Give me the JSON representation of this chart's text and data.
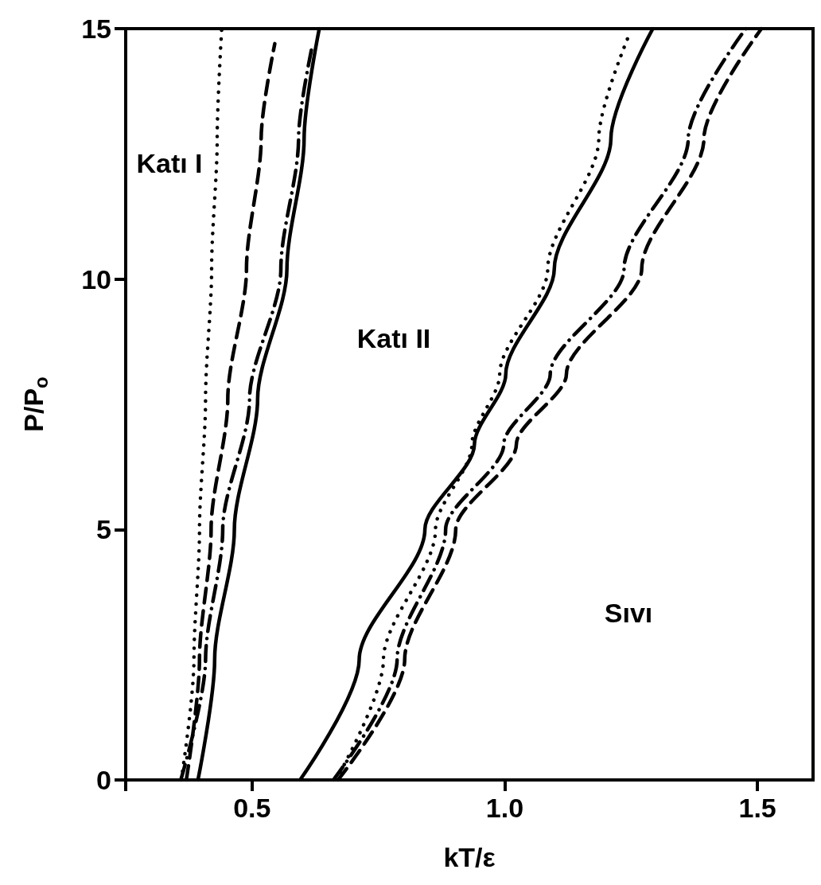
{
  "chart_data": {
    "type": "line",
    "xlabel": "kT/ε",
    "ylabel": "P/P$_{o}$",
    "xlim": [
      0.25,
      1.61
    ],
    "ylim": [
      0,
      15
    ],
    "xticks": [
      {
        "value": 0.25,
        "label": null
      },
      0.5,
      {
        "value": 1,
        "label": "1.0"
      },
      1.5
    ],
    "yticks": [
      0,
      5,
      10,
      15
    ],
    "grid": false,
    "marker": "none",
    "annotations": [
      "Katı I",
      "Katı II",
      "Sıvı"
    ],
    "series": [
      {
        "color": "#000000",
        "line_style": "solid",
        "x": [
          0.393,
          0.426,
          0.465,
          0.511,
          0.569,
          0.603,
          0.633
        ],
        "values": [
          0,
          2.4,
          5,
          7.6,
          10.2,
          12.8,
          15
        ]
      },
      {
        "color": "#000000",
        "line_style": "dotted",
        "x": [
          0.36,
          0.385,
          0.396,
          0.408,
          0.42,
          0.431,
          0.44
        ],
        "values": [
          0,
          2.4,
          5,
          7.6,
          10.2,
          12.8,
          15
        ]
      },
      {
        "color": "#000000",
        "line_style": "dashed",
        "x": [
          0.37,
          0.396,
          0.419,
          0.452,
          0.489,
          0.518,
          0.545
        ],
        "values": [
          0,
          2.4,
          5,
          7.6,
          10.2,
          12.8,
          14.7
        ]
      },
      {
        "color": "#000000",
        "line_style": "dashdot",
        "x": [
          0.359,
          0.408,
          0.442,
          0.495,
          0.557,
          0.592,
          0.62
        ],
        "values": [
          0,
          2.4,
          5,
          7.6,
          10.2,
          12.8,
          14.7
        ]
      },
      {
        "color": "#000000",
        "line_style": "solid",
        "x": [
          0.595,
          0.712,
          0.842,
          0.94,
          1.002,
          1.098,
          1.21,
          1.293
        ],
        "values": [
          0,
          2.4,
          5,
          6.7,
          8.1,
          10.2,
          12.8,
          15
        ]
      },
      {
        "color": "#000000",
        "line_style": "dotted",
        "x": [
          0.666,
          0.76,
          0.863,
          0.935,
          0.99,
          1.085,
          1.186,
          1.247
        ],
        "values": [
          0,
          2.4,
          5,
          6.7,
          8.1,
          10.2,
          12.8,
          14.9
        ]
      },
      {
        "color": "#000000",
        "line_style": "dashdot",
        "x": [
          0.661,
          0.787,
          0.883,
          0.998,
          1.09,
          1.236,
          1.363,
          1.477
        ],
        "values": [
          0,
          2.4,
          5,
          6.7,
          8.1,
          10.2,
          12.8,
          15
        ]
      },
      {
        "color": "#000000",
        "line_style": "dashed",
        "x": [
          0.67,
          0.802,
          0.903,
          1.023,
          1.122,
          1.271,
          1.394,
          1.508
        ],
        "values": [
          0,
          2.4,
          5,
          6.7,
          8.1,
          10.2,
          12.8,
          15
        ]
      }
    ]
  }
}
